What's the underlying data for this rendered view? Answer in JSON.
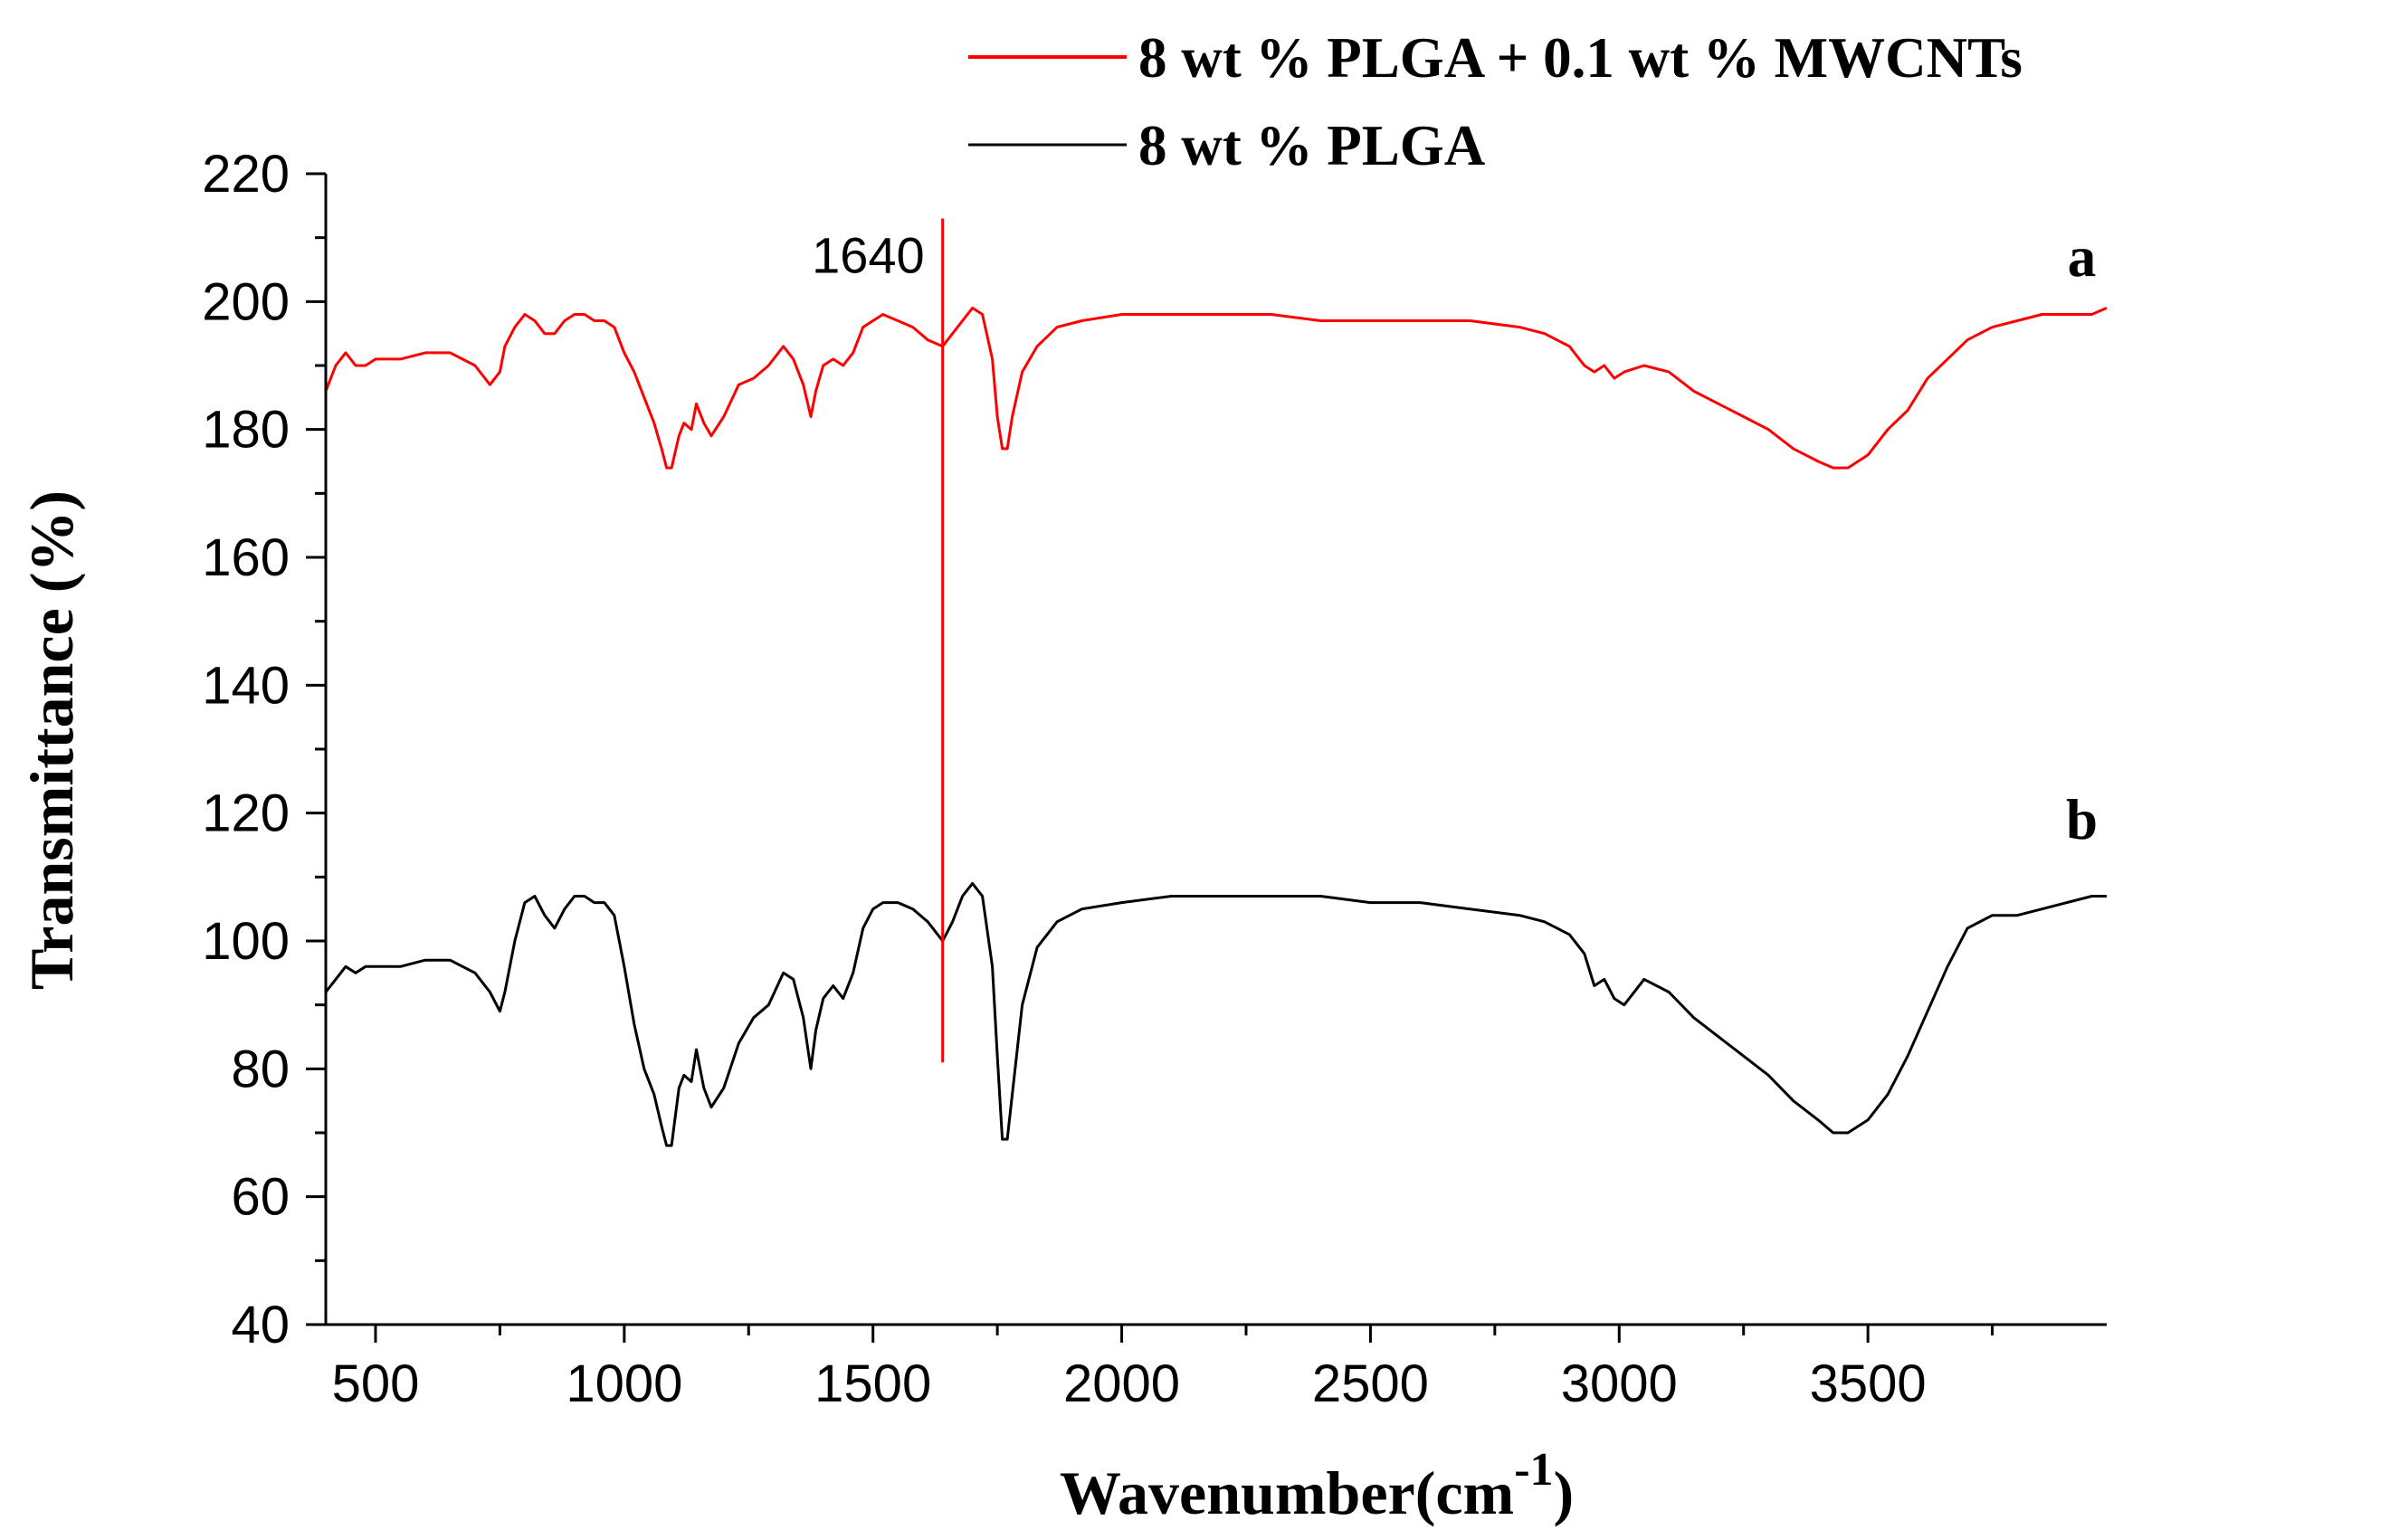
{
  "chart_data": {
    "type": "line",
    "title": "",
    "xlabel": "Wavenumber(cm",
    "xlabel_superscript": "-1",
    "xlabel_suffix": ")",
    "ylabel": "Transmittance (%)",
    "xlim": [
      400,
      3980
    ],
    "ylim": [
      40,
      220
    ],
    "x_ticks": [
      500,
      1000,
      1500,
      2000,
      2500,
      3000,
      3500
    ],
    "y_ticks": [
      40,
      60,
      80,
      100,
      120,
      140,
      160,
      180,
      200,
      220
    ],
    "legend": {
      "position": "top-right",
      "entries": [
        {
          "label": "8 wt % PLGA + 0.1 wt % MWCNTs",
          "color": "#ff0000"
        },
        {
          "label": "8 wt % PLGA",
          "color": "#000000"
        }
      ]
    },
    "annotations": {
      "marker_line": {
        "x": 1640,
        "y_range": [
          81,
          213
        ],
        "label": "1640",
        "color": "#ff0000"
      },
      "series_labels": [
        {
          "text": "a",
          "x": 3930,
          "y": 204
        },
        {
          "text": "b",
          "x": 3930,
          "y": 116
        }
      ]
    },
    "series": [
      {
        "name": "8 wt % PLGA + 0.1 wt % MWCNTs",
        "id": "a",
        "color": "#ff0000",
        "x": [
          400,
          420,
          440,
          460,
          480,
          500,
          550,
          600,
          650,
          700,
          730,
          750,
          760,
          780,
          800,
          820,
          840,
          860,
          880,
          900,
          920,
          940,
          960,
          980,
          1000,
          1020,
          1040,
          1060,
          1075,
          1085,
          1095,
          1110,
          1120,
          1135,
          1145,
          1160,
          1175,
          1200,
          1230,
          1260,
          1290,
          1320,
          1340,
          1360,
          1375,
          1385,
          1400,
          1420,
          1440,
          1460,
          1480,
          1500,
          1520,
          1550,
          1580,
          1610,
          1640,
          1660,
          1680,
          1700,
          1720,
          1740,
          1750,
          1760,
          1770,
          1780,
          1800,
          1830,
          1870,
          1920,
          2000,
          2100,
          2200,
          2300,
          2400,
          2500,
          2600,
          2700,
          2800,
          2850,
          2900,
          2930,
          2950,
          2970,
          2990,
          3010,
          3050,
          3100,
          3150,
          3200,
          3250,
          3300,
          3350,
          3400,
          3430,
          3460,
          3500,
          3540,
          3580,
          3620,
          3660,
          3700,
          3750,
          3800,
          3850,
          3900,
          3950,
          3980
        ],
        "y": [
          186,
          190,
          192,
          190,
          190,
          191,
          191,
          192,
          192,
          190,
          187,
          189,
          193,
          196,
          198,
          197,
          195,
          195,
          197,
          198,
          198,
          197,
          197,
          196,
          192,
          189,
          185,
          181,
          177,
          174,
          174,
          179,
          181,
          180,
          184,
          181,
          179,
          182,
          187,
          188,
          190,
          193,
          191,
          187,
          182,
          186,
          190,
          191,
          190,
          192,
          196,
          197,
          198,
          197,
          196,
          194,
          193,
          195,
          197,
          199,
          198,
          191,
          182,
          177,
          177,
          182,
          189,
          193,
          196,
          197,
          198,
          198,
          198,
          198,
          197,
          197,
          197,
          197,
          196,
          195,
          193,
          190,
          189,
          190,
          188,
          189,
          190,
          189,
          186,
          184,
          182,
          180,
          177,
          175,
          174,
          174,
          176,
          180,
          183,
          188,
          191,
          194,
          196,
          197,
          198,
          198,
          198,
          199
        ]
      },
      {
        "name": "8 wt % PLGA",
        "id": "b",
        "color": "#000000",
        "x": [
          400,
          420,
          440,
          460,
          480,
          500,
          550,
          600,
          650,
          700,
          730,
          750,
          760,
          780,
          800,
          820,
          840,
          860,
          880,
          900,
          920,
          940,
          960,
          980,
          1000,
          1020,
          1040,
          1060,
          1075,
          1085,
          1095,
          1110,
          1120,
          1135,
          1145,
          1160,
          1175,
          1200,
          1230,
          1260,
          1290,
          1320,
          1340,
          1360,
          1375,
          1385,
          1400,
          1420,
          1440,
          1460,
          1480,
          1500,
          1520,
          1550,
          1580,
          1610,
          1640,
          1660,
          1680,
          1700,
          1720,
          1740,
          1750,
          1760,
          1770,
          1780,
          1800,
          1830,
          1870,
          1920,
          2000,
          2100,
          2200,
          2300,
          2400,
          2500,
          2600,
          2700,
          2800,
          2850,
          2900,
          2930,
          2950,
          2970,
          2990,
          3010,
          3050,
          3100,
          3150,
          3200,
          3250,
          3300,
          3350,
          3400,
          3430,
          3460,
          3500,
          3540,
          3580,
          3620,
          3660,
          3700,
          3750,
          3800,
          3850,
          3900,
          3950,
          3980
        ],
        "y": [
          92,
          94,
          96,
          95,
          96,
          96,
          96,
          97,
          97,
          95,
          92,
          89,
          92,
          100,
          106,
          107,
          104,
          102,
          105,
          107,
          107,
          106,
          106,
          104,
          96,
          87,
          80,
          76,
          71,
          68,
          68,
          77,
          79,
          78,
          83,
          77,
          74,
          77,
          84,
          88,
          90,
          95,
          94,
          88,
          80,
          86,
          91,
          93,
          91,
          95,
          102,
          105,
          106,
          106,
          105,
          103,
          100,
          103,
          107,
          109,
          107,
          96,
          82,
          69,
          69,
          76,
          90,
          99,
          103,
          105,
          106,
          107,
          107,
          107,
          107,
          106,
          106,
          105,
          104,
          103,
          101,
          98,
          93,
          94,
          91,
          90,
          94,
          92,
          88,
          85,
          82,
          79,
          75,
          72,
          70,
          70,
          72,
          76,
          82,
          89,
          96,
          102,
          104,
          104,
          105,
          106,
          107,
          107
        ]
      }
    ]
  }
}
